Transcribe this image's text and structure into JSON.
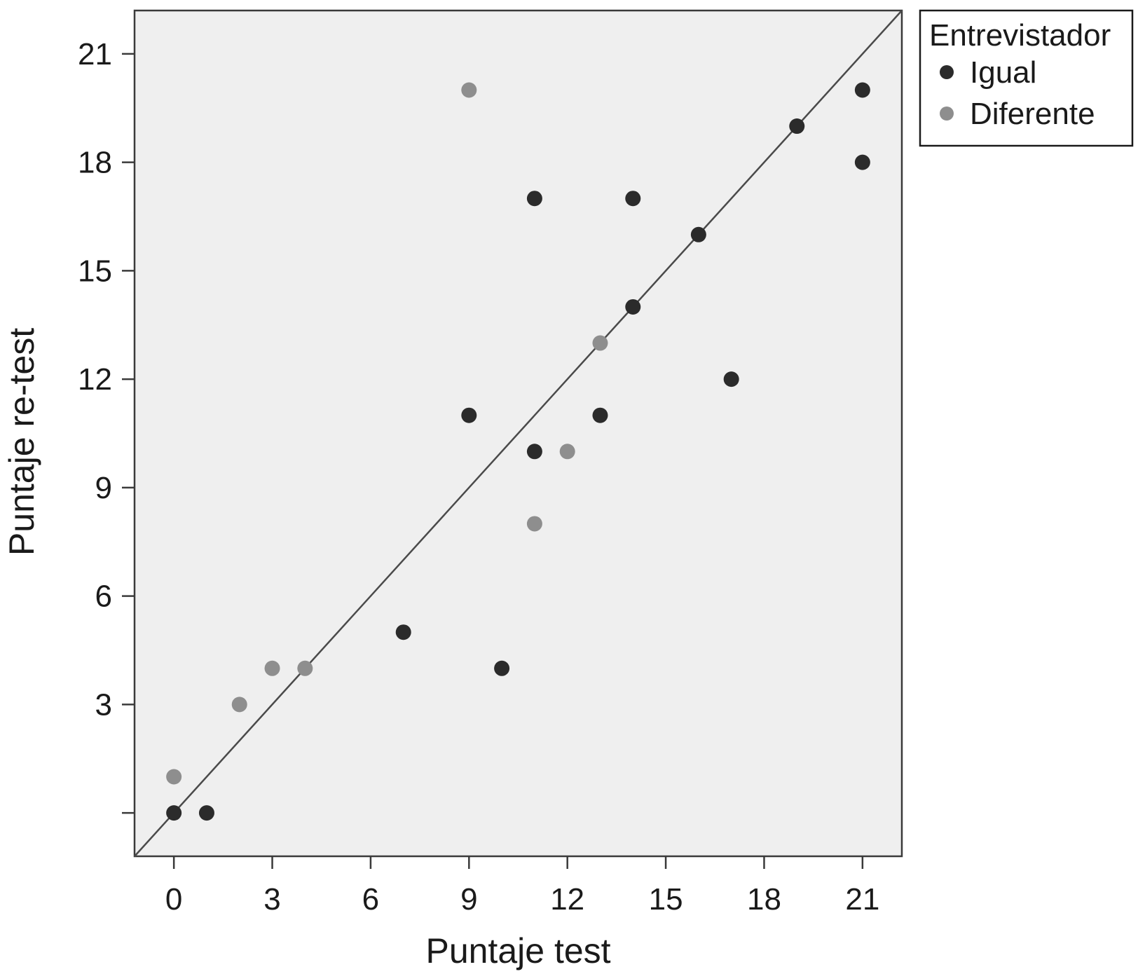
{
  "chart_data": {
    "type": "scatter",
    "title": "",
    "xlabel": "Puntaje test",
    "ylabel": "Puntaje re-test",
    "xlim": [
      -1.2,
      22.2
    ],
    "ylim": [
      -1.2,
      22.2
    ],
    "xticks": [
      0,
      3,
      6,
      9,
      12,
      15,
      18,
      21
    ],
    "yticks": [
      0,
      3,
      6,
      9,
      12,
      15,
      18,
      21
    ],
    "ytick_labels": [
      "",
      "3",
      "6",
      "9",
      "12",
      "15",
      "18",
      "21"
    ],
    "grid": false,
    "plot_background": "#efefef",
    "reference_line": {
      "type": "identity",
      "from": [
        -1.2,
        -1.2
      ],
      "to": [
        22.2,
        22.2
      ],
      "color": "#4a4a4a"
    },
    "legend": {
      "title": "Entrevistador",
      "position": "outside-top-right"
    },
    "series": [
      {
        "name": "Igual",
        "color": "#2b2b2b",
        "points": [
          [
            0,
            0
          ],
          [
            1,
            0
          ],
          [
            7,
            5
          ],
          [
            10,
            4
          ],
          [
            9,
            11
          ],
          [
            11,
            10
          ],
          [
            13,
            11
          ],
          [
            11,
            17
          ],
          [
            14,
            17
          ],
          [
            14,
            14
          ],
          [
            16,
            16
          ],
          [
            17,
            12
          ],
          [
            19,
            19
          ],
          [
            21,
            20
          ],
          [
            21,
            18
          ]
        ]
      },
      {
        "name": "Diferente",
        "color": "#8e8e8e",
        "points": [
          [
            0,
            1
          ],
          [
            2,
            3
          ],
          [
            3,
            4
          ],
          [
            4,
            4
          ],
          [
            9,
            20
          ],
          [
            11,
            8
          ],
          [
            12,
            10
          ],
          [
            13,
            13
          ]
        ]
      }
    ]
  }
}
